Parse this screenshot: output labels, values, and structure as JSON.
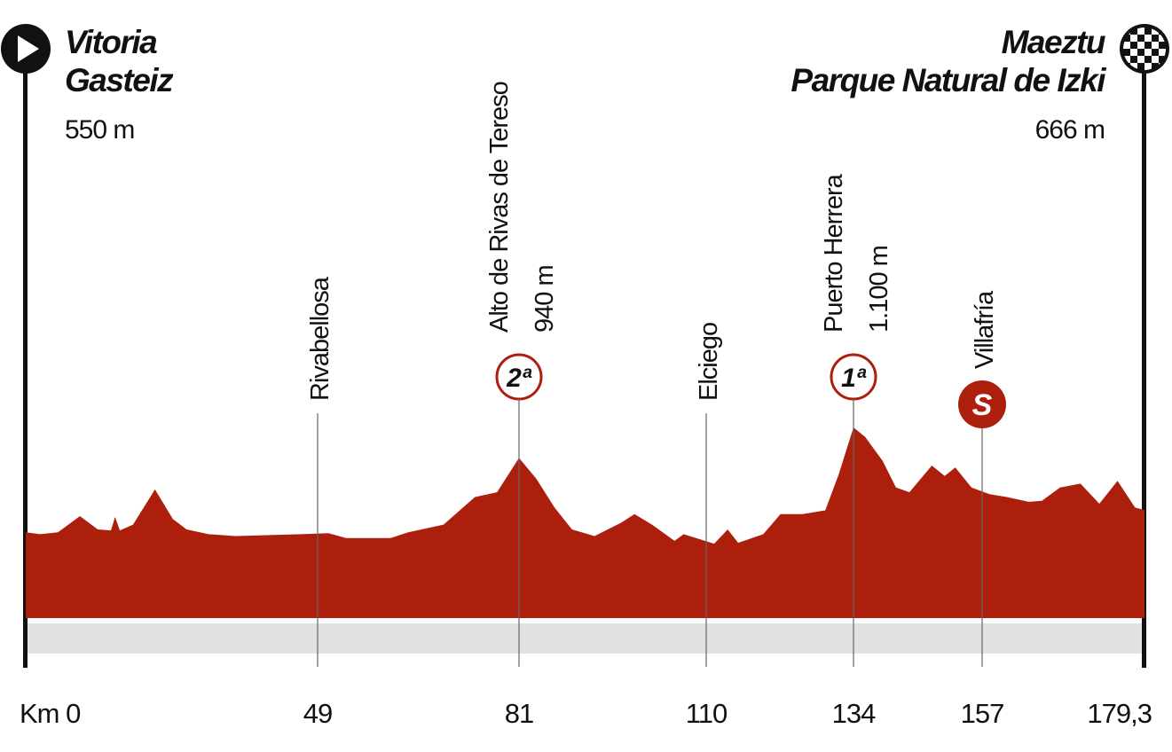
{
  "chart_data": {
    "type": "area",
    "start": {
      "name": [
        "Vitoria",
        "Gasteiz"
      ],
      "elevation": "550 m"
    },
    "finish": {
      "name": [
        "Maeztu",
        "Parque Natural de Izki"
      ],
      "elevation": "666 m"
    },
    "waypoints": [
      {
        "name": "Rivabellosa",
        "km": 49
      },
      {
        "name": "Alto de Rivas de Tereso",
        "elevation": "940 m",
        "category": "2ª",
        "km": 81
      },
      {
        "name": "Elciego",
        "km": 110
      },
      {
        "name": "Puerto Herrera",
        "elevation": "1.100 m",
        "category": "1ª",
        "km": 134
      },
      {
        "name": "Villafría",
        "sprint": "S",
        "km": 157
      }
    ],
    "x": [
      0,
      2.4,
      5.4,
      9.1,
      12.1,
      14.3,
      15.0,
      15.8,
      18.0,
      21.7,
      24.7,
      27.0,
      30.7,
      35.2,
      40.4,
      46.3,
      50.7,
      53.5,
      60.6,
      63.4,
      69.0,
      74.0,
      77.5,
      81,
      83.7,
      86.5,
      89.2,
      92.7,
      96.8,
      98.9,
      101.6,
      105.1,
      106.5,
      111.3,
      113.5,
      115.2,
      119.3,
      122.1,
      125.7,
      129.4,
      131.6,
      134,
      136.1,
      139.2,
      141.6,
      144.0,
      148.0,
      150.3,
      152.2,
      155.1,
      158.0,
      160.4,
      163.4,
      165.2,
      167.7,
      170.5,
      173.1,
      175.6,
      178.0,
      179.3
    ],
    "values": [
      550,
      540,
      550,
      635,
      565,
      560,
      630,
      560,
      590,
      775,
      620,
      565,
      540,
      530,
      535,
      540,
      545,
      520,
      520,
      550,
      590,
      735,
      760,
      940,
      830,
      680,
      565,
      530,
      600,
      645,
      590,
      505,
      540,
      490,
      565,
      495,
      540,
      645,
      645,
      665,
      855,
      1100,
      1050,
      925,
      785,
      760,
      900,
      845,
      890,
      785,
      750,
      735,
      710,
      715,
      785,
      805,
      700,
      820,
      680,
      666
    ],
    "color": "#ad1f0d",
    "xlim": [
      0,
      179.3
    ],
    "xticks": [
      {
        "value": 0,
        "label": "Km 0"
      },
      49,
      81,
      110,
      134,
      157,
      {
        "value": 179.3,
        "label": "179,3"
      }
    ],
    "ylim": [
      100,
      1300
    ]
  }
}
